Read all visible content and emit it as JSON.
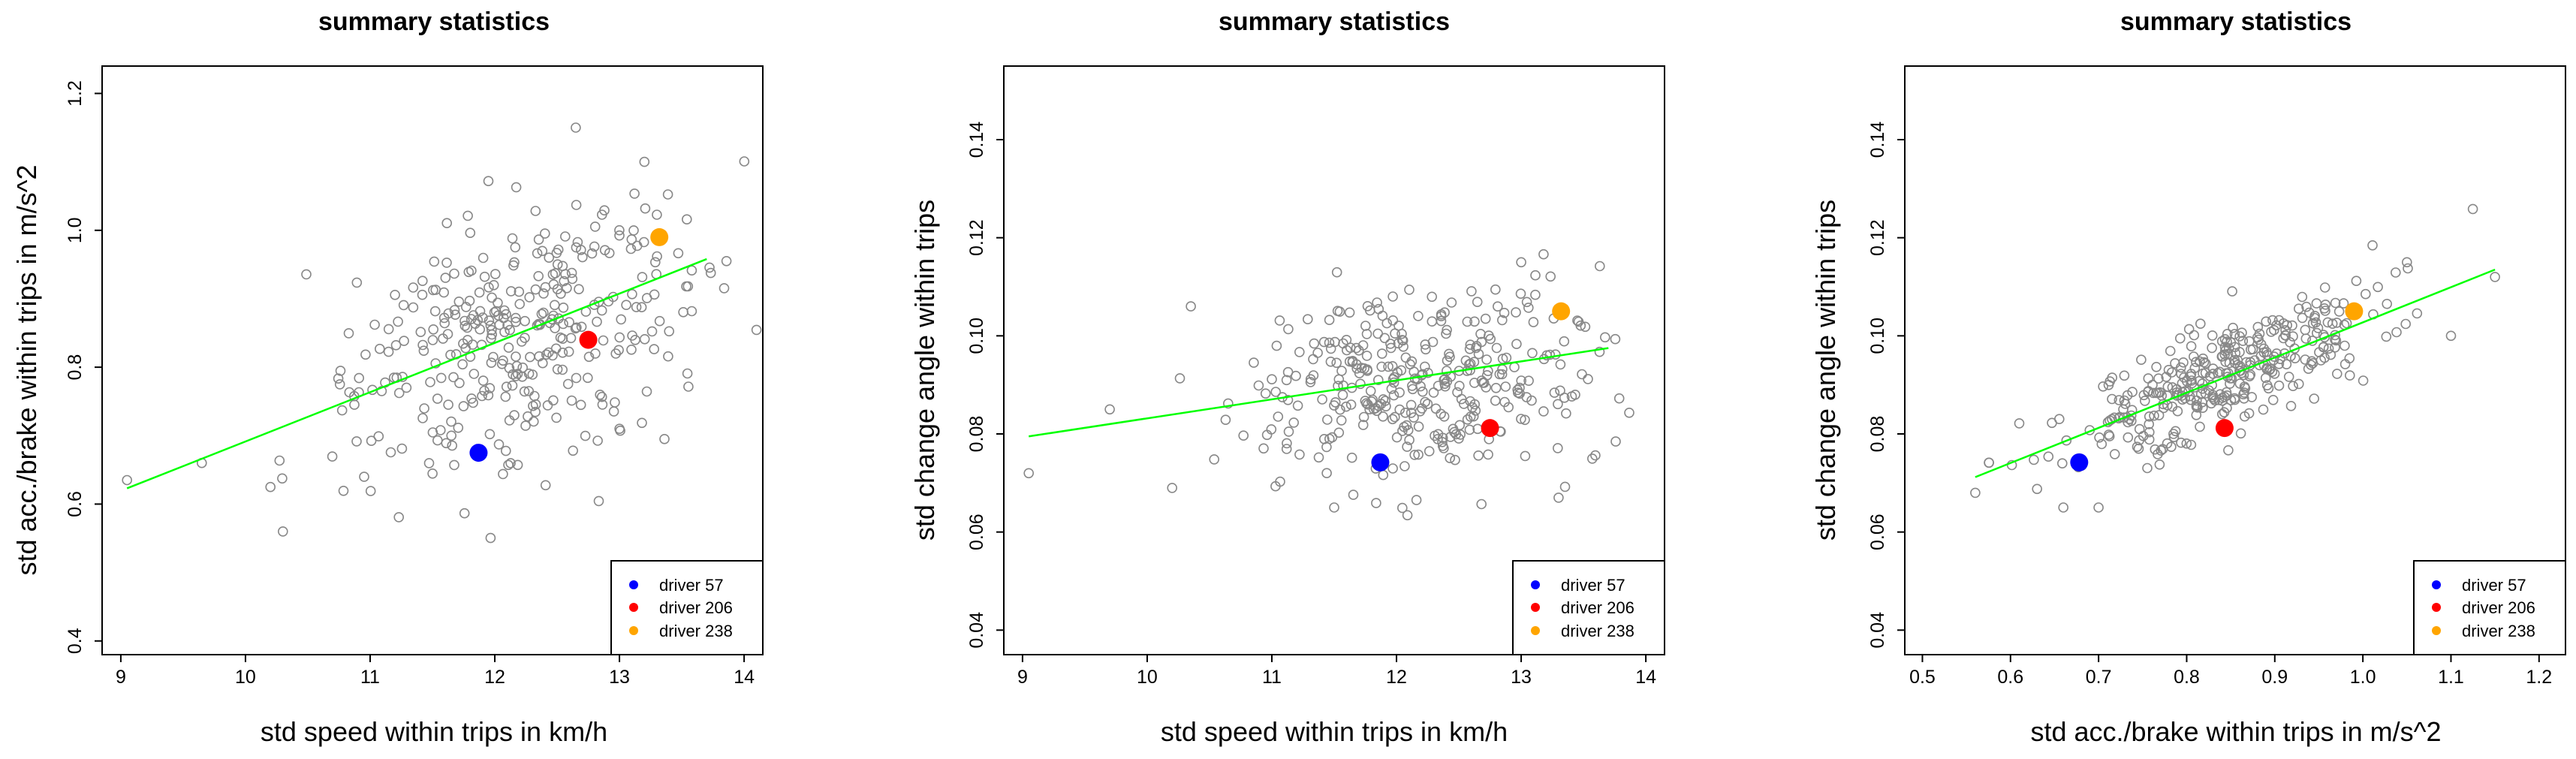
{
  "chart_data": [
    {
      "type": "scatter",
      "title": "summary statistics",
      "xlabel": "std speed within trips in km/h",
      "ylabel": "std acc./brake within trips in m/s^2",
      "xlim": [
        8.85,
        14.15
      ],
      "ylim": [
        0.38,
        1.24
      ],
      "xticks": [
        9,
        10,
        11,
        12,
        13,
        14
      ],
      "yticks": [
        0.4,
        0.6,
        0.8,
        1.0,
        1.2
      ],
      "ytick_labels": [
        "0.4",
        "0.6",
        "0.8",
        "1.0",
        "1.2"
      ],
      "x_center": 12.2,
      "x_sd": 0.7,
      "y_center": 0.84,
      "y_sd": 0.095,
      "n_points": 350,
      "outliers": [
        [
          9.05,
          0.635
        ],
        [
          9.65,
          0.66
        ],
        [
          10.3,
          0.56
        ],
        [
          12.65,
          1.15
        ],
        [
          13.2,
          1.1
        ],
        [
          13.0,
          0.71
        ],
        [
          10.2,
          0.625
        ]
      ],
      "trend_line": {
        "x": [
          9.05,
          13.7
        ],
        "y": [
          0.623,
          0.958
        ],
        "color": "#00ff00"
      },
      "highlights": [
        {
          "label": "driver 57",
          "x": 11.87,
          "y": 0.675,
          "color": "#0000ff"
        },
        {
          "label": "driver 206",
          "x": 12.75,
          "y": 0.84,
          "color": "#ff0000"
        },
        {
          "label": "driver 238",
          "x": 13.32,
          "y": 0.99,
          "color": "#ffa500"
        }
      ],
      "legend_position": "bottom-right",
      "legend": [
        "driver 57",
        "driver 206",
        "driver 238"
      ],
      "colors": {
        "points": "#888888"
      }
    },
    {
      "type": "scatter",
      "title": "summary statistics",
      "xlabel": "std speed within trips in km/h",
      "ylabel": "std change angle within trips",
      "xlim": [
        8.85,
        14.15
      ],
      "ylim": [
        0.035,
        0.155
      ],
      "xticks": [
        9,
        10,
        11,
        12,
        13,
        14
      ],
      "yticks": [
        0.04,
        0.06,
        0.08,
        0.1,
        0.12,
        0.14
      ],
      "ytick_labels": [
        "0.04",
        "0.06",
        "0.08",
        "0.10",
        "0.12",
        "0.14"
      ],
      "x_center": 12.2,
      "x_sd": 0.7,
      "y_center": 0.09,
      "y_sd": 0.0095,
      "n_points": 350,
      "outliers": [
        [
          9.05,
          0.072
        ],
        [
          9.7,
          0.085
        ],
        [
          10.35,
          0.106
        ],
        [
          11.5,
          0.065
        ],
        [
          13.3,
          0.067
        ],
        [
          13.0,
          0.115
        ],
        [
          10.2,
          0.069
        ]
      ],
      "trend_line": {
        "x": [
          9.05,
          13.7
        ],
        "y": [
          0.0795,
          0.0975
        ],
        "color": "#00ff00"
      },
      "highlights": [
        {
          "label": "driver 57",
          "x": 11.87,
          "y": 0.0742,
          "color": "#0000ff"
        },
        {
          "label": "driver 206",
          "x": 12.75,
          "y": 0.0812,
          "color": "#ff0000"
        },
        {
          "label": "driver 238",
          "x": 13.32,
          "y": 0.105,
          "color": "#ffa500"
        }
      ],
      "legend_position": "bottom-right",
      "legend": [
        "driver 57",
        "driver 206",
        "driver 238"
      ],
      "colors": {
        "points": "#888888"
      }
    },
    {
      "type": "scatter",
      "title": "summary statistics",
      "xlabel": "std acc./brake within trips in m/s^2",
      "ylabel": "std change angle within trips",
      "xlim": [
        0.48,
        1.23
      ],
      "ylim": [
        0.035,
        0.155
      ],
      "xticks": [
        0.5,
        0.6,
        0.7,
        0.8,
        0.9,
        1.0,
        1.1,
        1.2
      ],
      "xtick_labels": [
        "0.5",
        "0.6",
        "0.7",
        "0.8",
        "0.9",
        "1.0",
        "1.1",
        "1.2"
      ],
      "yticks": [
        0.04,
        0.06,
        0.08,
        0.1,
        0.12,
        0.14
      ],
      "ytick_labels": [
        "0.04",
        "0.06",
        "0.08",
        "0.10",
        "0.12",
        "0.14"
      ],
      "x_center": 0.84,
      "x_sd": 0.09,
      "y_center": 0.09,
      "y_sd": 0.0095,
      "correlated": true,
      "n_points": 350,
      "outliers": [
        [
          0.56,
          0.068
        ],
        [
          1.15,
          0.112
        ],
        [
          1.1,
          0.1
        ],
        [
          1.05,
          0.115
        ],
        [
          0.66,
          0.065
        ],
        [
          0.7,
          0.065
        ]
      ],
      "trend_line": {
        "x": [
          0.56,
          1.15
        ],
        "y": [
          0.0712,
          0.1135
        ],
        "color": "#00ff00"
      },
      "highlights": [
        {
          "label": "driver 57",
          "x": 0.678,
          "y": 0.0742,
          "color": "#0000ff"
        },
        {
          "label": "driver 206",
          "x": 0.843,
          "y": 0.0812,
          "color": "#ff0000"
        },
        {
          "label": "driver 238",
          "x": 0.99,
          "y": 0.105,
          "color": "#ffa500"
        }
      ],
      "legend_position": "bottom-right",
      "legend": [
        "driver 57",
        "driver 206",
        "driver 238"
      ],
      "colors": {
        "points": "#888888"
      }
    }
  ]
}
